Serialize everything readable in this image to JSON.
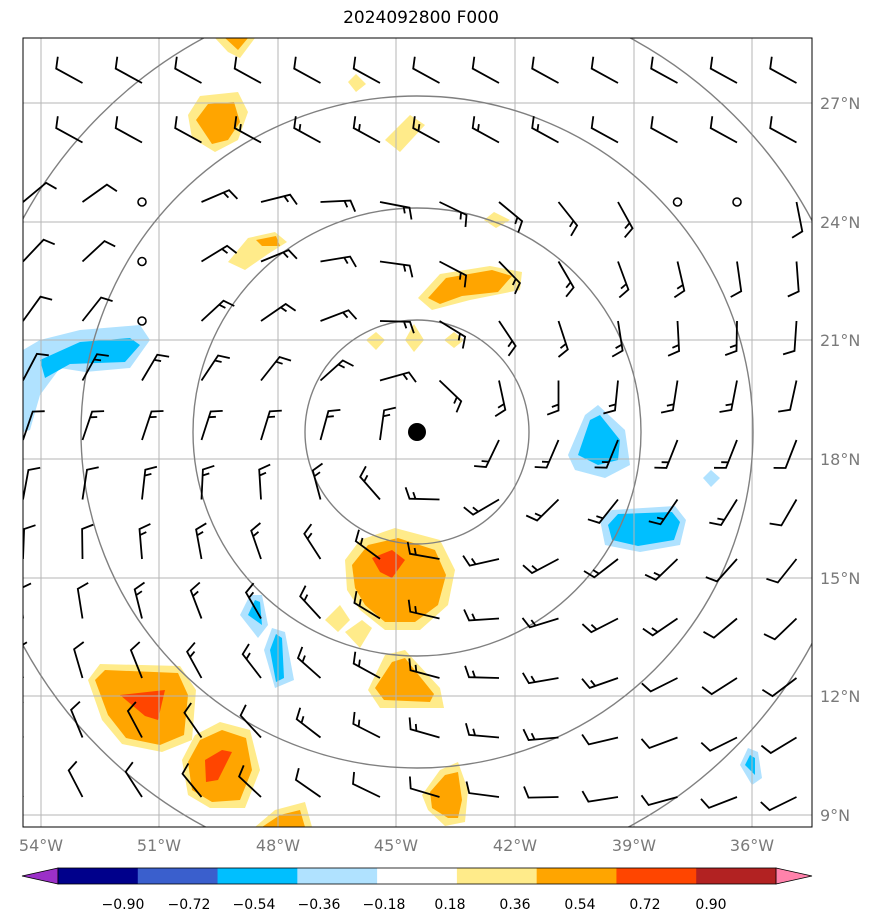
{
  "title": "2024092800 F000",
  "latitude_labels": [
    "27°N",
    "24°N",
    "21°N",
    "18°N",
    "15°N",
    "12°N",
    "9°N"
  ],
  "longitude_labels": [
    "54°W",
    "51°W",
    "48°W",
    "45°W",
    "42°W",
    "39°W",
    "36°W"
  ],
  "colorbar": {
    "labels": [
      "−0.90",
      "−0.72",
      "−0.54",
      "−0.36",
      "−0.18",
      "0.18",
      "0.36",
      "0.54",
      "0.72",
      "0.90"
    ],
    "colors": [
      "#9b30c8",
      "#00008b",
      "#3a5fcd",
      "#00bfff",
      "#b0e2ff",
      "#ffffff",
      "#ffeb8a",
      "#ffa500",
      "#ff4500",
      "#b22222",
      "#ff82ab"
    ]
  },
  "storm_center": {
    "lon": -44.4,
    "lat": 18.7
  },
  "range_rings": "concentric distance circles around storm center",
  "chart_data": {
    "type": "map",
    "fields": [
      "shaded anomaly field",
      "wind barbs"
    ],
    "lon_range": [
      -54.5,
      -34.5
    ],
    "lat_range": [
      8.7,
      28.6
    ],
    "grid": true
  }
}
